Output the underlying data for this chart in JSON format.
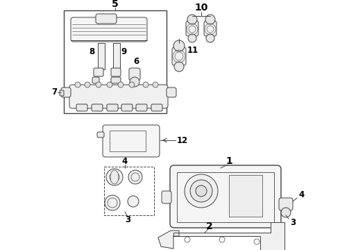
{
  "bg_color": "#ffffff",
  "lc": "#404040",
  "lw": 0.7,
  "lw_thick": 1.0,
  "label_fs": 8.5,
  "label_bold_fs": 10
}
